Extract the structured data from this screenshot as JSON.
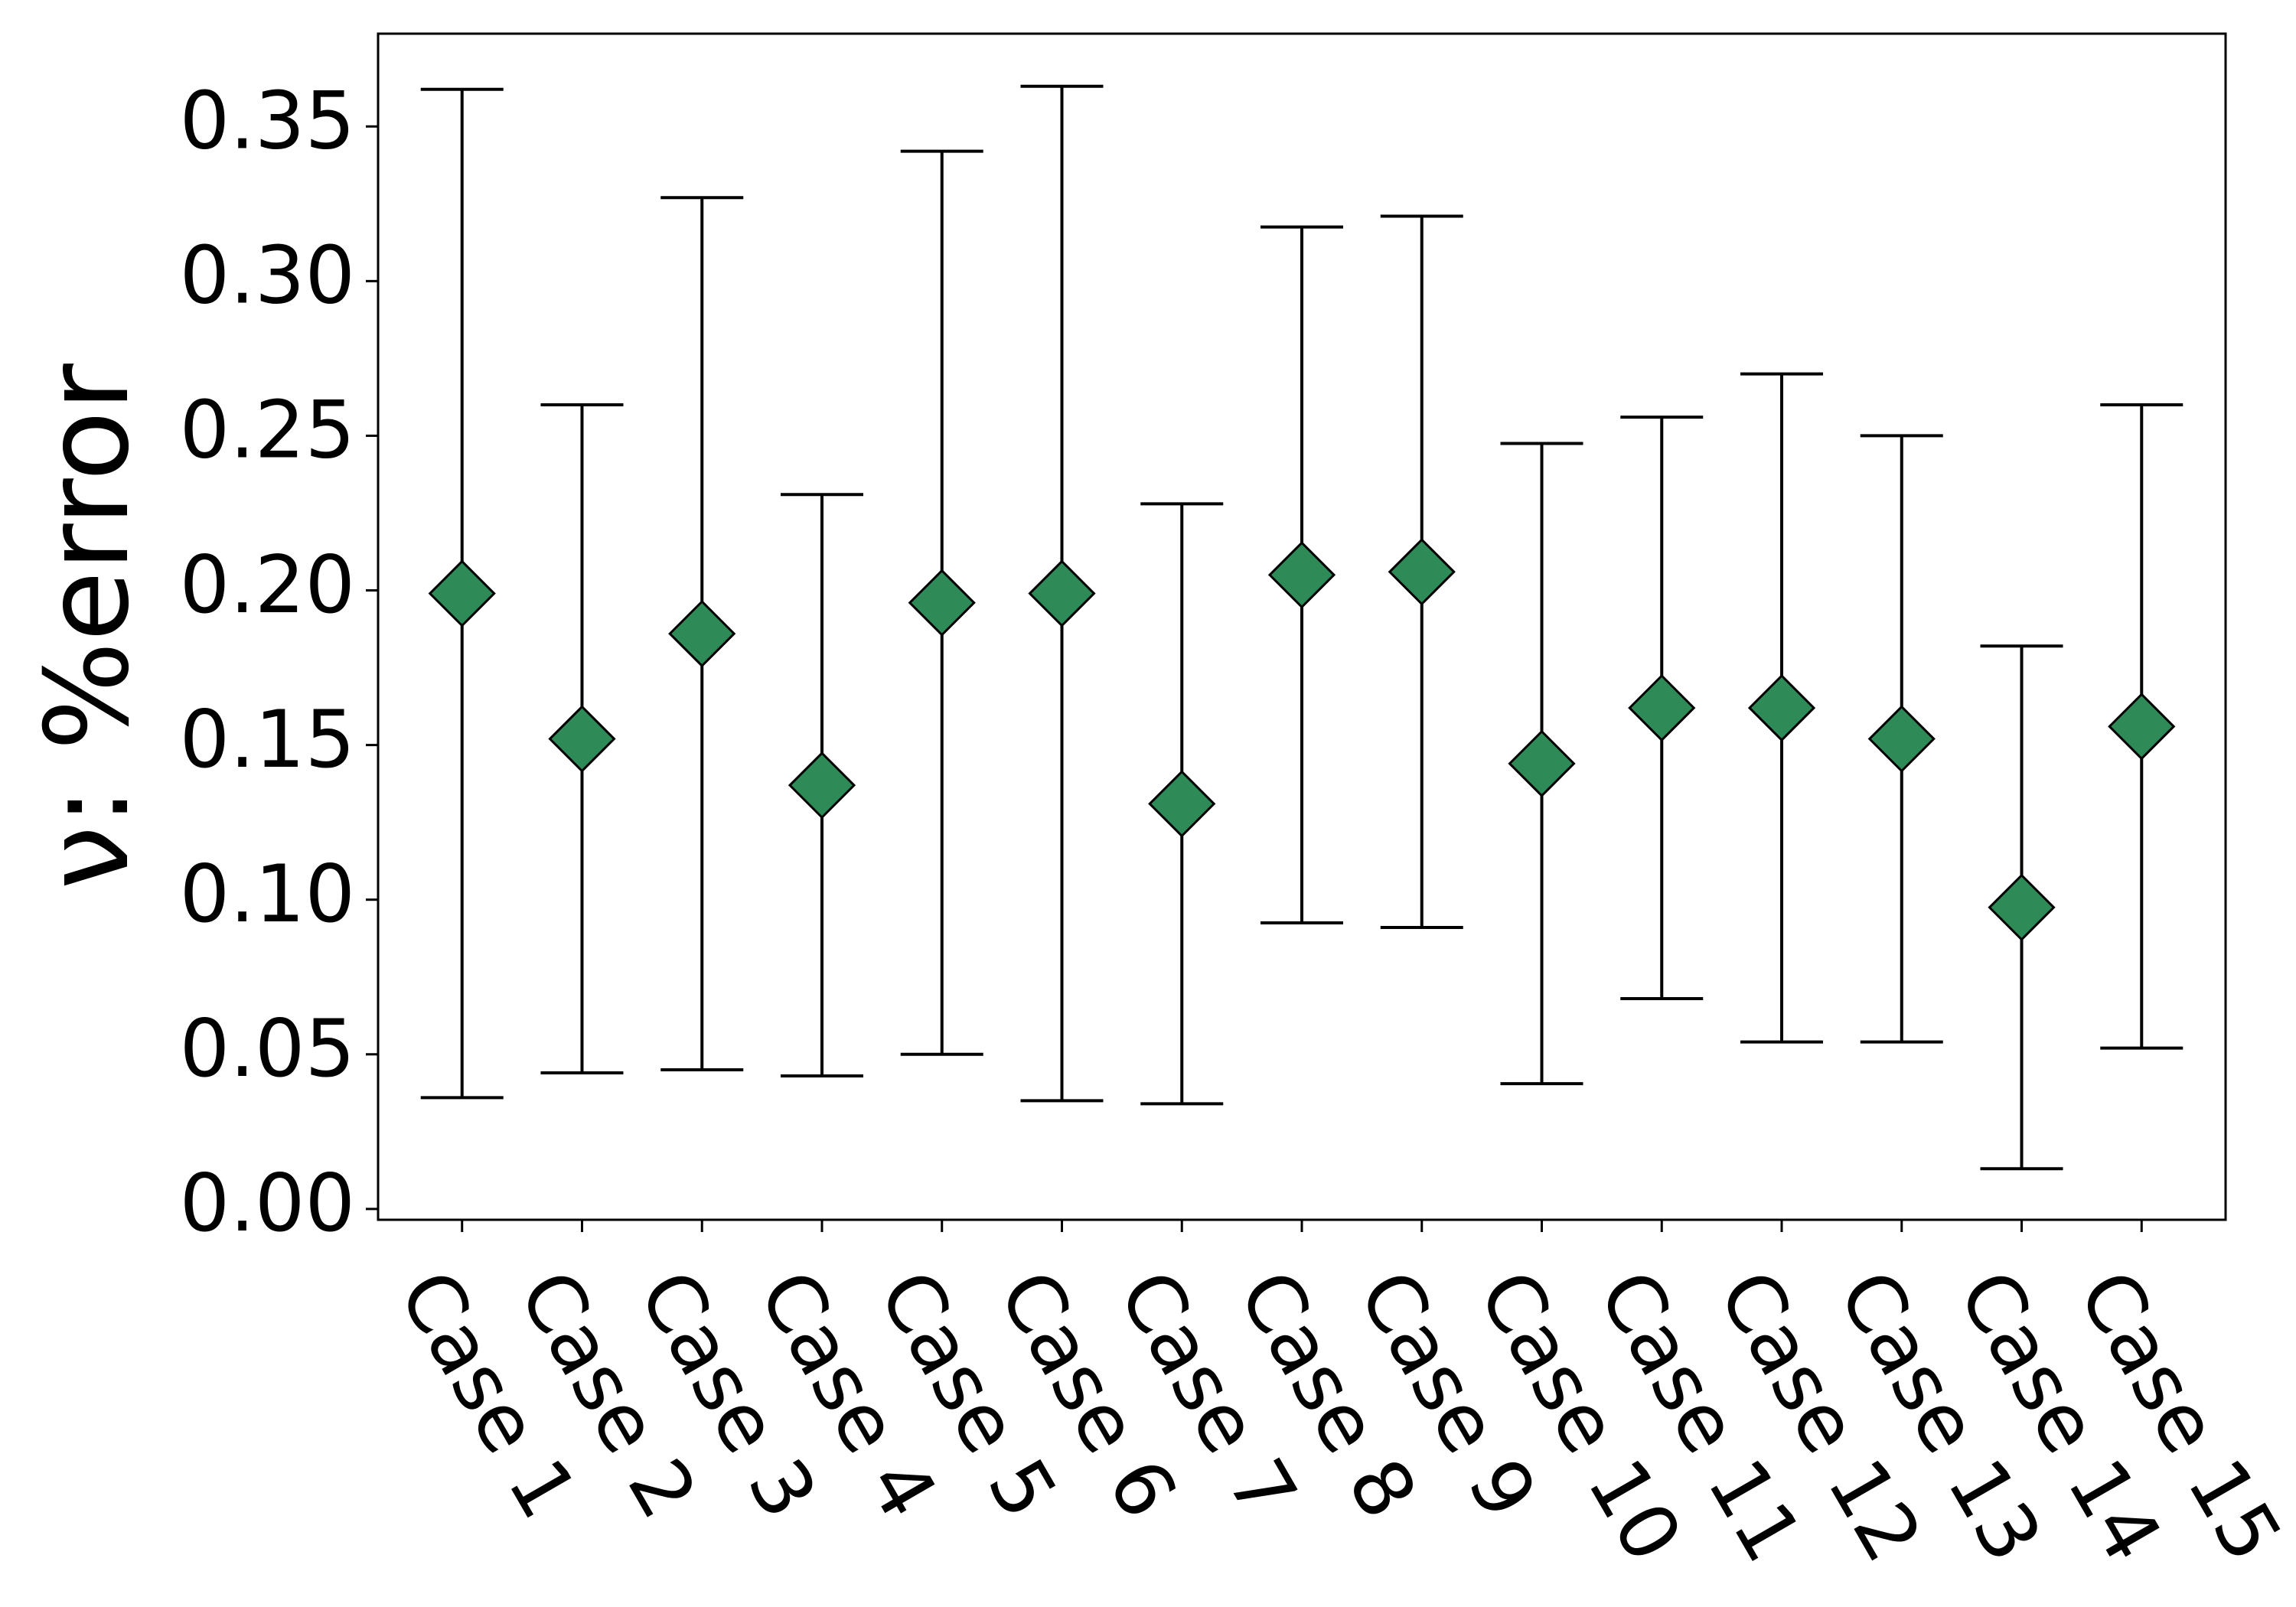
{
  "chart_data": {
    "type": "errorbar",
    "ylabel": "ν: %error",
    "categories": [
      "Case 1",
      "Case 2",
      "Case 3",
      "Case 4",
      "Case 5",
      "Case 6",
      "Case 7",
      "Case 8",
      "Case 9",
      "Case 10",
      "Case 11",
      "Case 12",
      "Case 13",
      "Case 14",
      "Case 15"
    ],
    "values": [
      0.199,
      0.152,
      0.186,
      0.137,
      0.196,
      0.199,
      0.131,
      0.205,
      0.206,
      0.144,
      0.162,
      0.162,
      0.152,
      0.0975,
      0.156
    ],
    "errors": [
      0.163,
      0.108,
      0.141,
      0.094,
      0.146,
      0.164,
      0.097,
      0.1125,
      0.115,
      0.1035,
      0.094,
      0.108,
      0.098,
      0.0845,
      0.104
    ],
    "color": "#2e8b57",
    "ylim": [
      -0.0035,
      0.38
    ],
    "yticks": [
      {
        "value": 0,
        "label": "0.00"
      },
      {
        "value": 0.05,
        "label": "0.05"
      },
      {
        "value": 0.1,
        "label": "0.10"
      },
      {
        "value": 0.15,
        "label": "0.15"
      },
      {
        "value": 0.2,
        "label": "0.20"
      },
      {
        "value": 0.25,
        "label": "0.25"
      },
      {
        "value": 0.3,
        "label": "0.30"
      },
      {
        "value": 0.35,
        "label": "0.35"
      }
    ]
  }
}
